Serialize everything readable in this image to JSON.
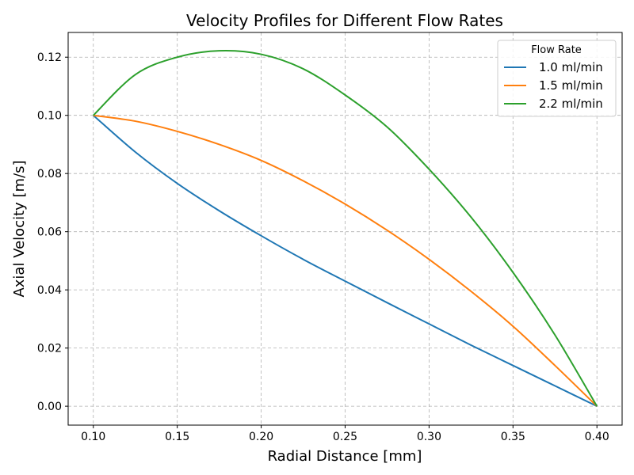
{
  "chart_data": {
    "type": "line",
    "title": "Velocity Profiles for Different Flow Rates",
    "xlabel": "Radial Distance [mm]",
    "ylabel": "Axial Velocity [m/s]",
    "xlim": [
      0.085,
      0.415
    ],
    "ylim": [
      -0.0065,
      0.1285
    ],
    "xticks": [
      "0.10",
      "0.15",
      "0.20",
      "0.25",
      "0.30",
      "0.35",
      "0.40"
    ],
    "xtick_values": [
      0.1,
      0.15,
      0.2,
      0.25,
      0.3,
      0.35,
      0.4
    ],
    "yticks": [
      "0.00",
      "0.02",
      "0.04",
      "0.06",
      "0.08",
      "0.10",
      "0.12"
    ],
    "ytick_values": [
      0.0,
      0.02,
      0.04,
      0.06,
      0.08,
      0.1,
      0.12
    ],
    "grid": true,
    "legend": {
      "title": "Flow Rate",
      "placement": "top-right"
    },
    "x": [
      0.1,
      0.125,
      0.15,
      0.175,
      0.2,
      0.225,
      0.25,
      0.275,
      0.3,
      0.325,
      0.35,
      0.375,
      0.4
    ],
    "series": [
      {
        "name": "1.0 ml/min",
        "color": "#1f77b4",
        "values": [
          0.1,
          0.0874,
          0.0766,
          0.0672,
          0.0586,
          0.0505,
          0.043,
          0.0356,
          0.0283,
          0.021,
          0.014,
          0.007,
          0.0
        ]
      },
      {
        "name": "1.5 ml/min",
        "color": "#ff7f0e",
        "values": [
          0.1,
          0.098,
          0.0945,
          0.09,
          0.0845,
          0.0775,
          0.0695,
          0.0605,
          0.0505,
          0.0395,
          0.0275,
          0.014,
          0.0
        ]
      },
      {
        "name": "2.2 ml/min",
        "color": "#2ca02c",
        "values": [
          0.1,
          0.114,
          0.12,
          0.1222,
          0.121,
          0.116,
          0.107,
          0.096,
          0.0815,
          0.065,
          0.046,
          0.0245,
          0.0
        ]
      }
    ]
  }
}
